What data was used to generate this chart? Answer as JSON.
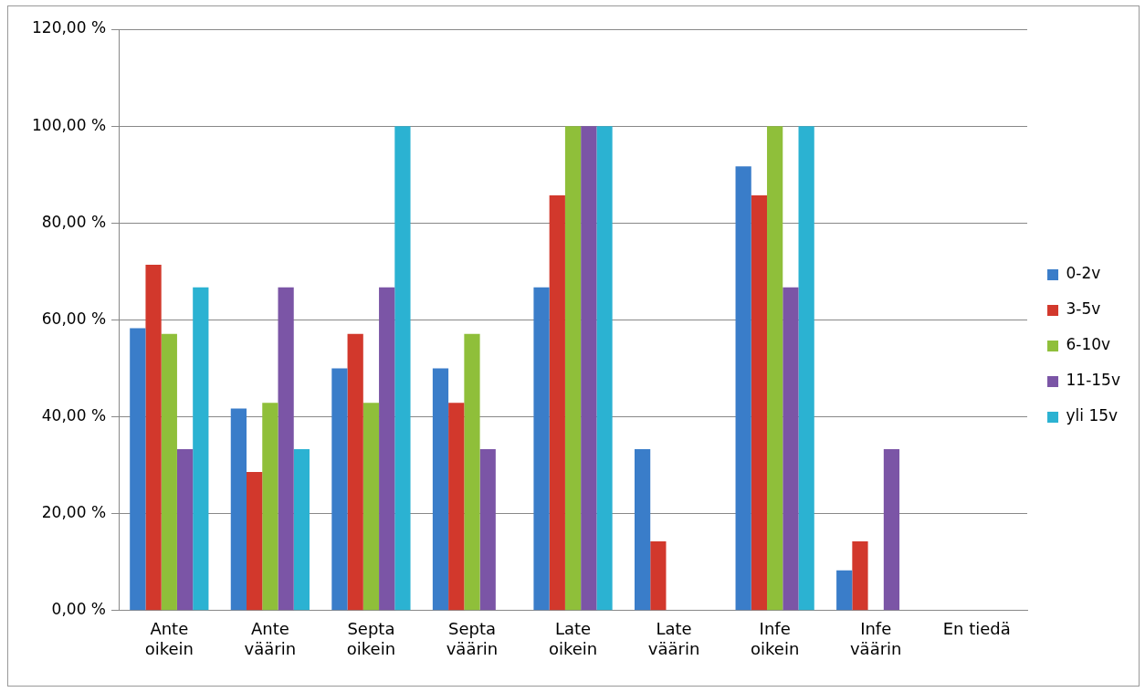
{
  "chart_data": {
    "type": "bar",
    "categories": [
      "Ante\noikein",
      "Ante\nväärin",
      "Septa\noikein",
      "Septa\nväärin",
      "Late\noikein",
      "Late\nväärin",
      "Infe\noikein",
      "Infe\nväärin",
      "En tiedä"
    ],
    "series": [
      {
        "name": "0-2v",
        "color": "#3a7dc9",
        "values": [
          58.3,
          41.7,
          50,
          50,
          66.7,
          33.3,
          91.7,
          8.3,
          0
        ]
      },
      {
        "name": "3-5v",
        "color": "#d2382c",
        "values": [
          71.4,
          28.6,
          57.1,
          42.9,
          85.7,
          14.3,
          85.7,
          14.3,
          0
        ]
      },
      {
        "name": "6-10v",
        "color": "#8fbf3a",
        "values": [
          57.1,
          42.9,
          42.9,
          57.1,
          100,
          0,
          100,
          0,
          0
        ]
      },
      {
        "name": "11-15v",
        "color": "#7b55a6",
        "values": [
          33.3,
          66.7,
          66.7,
          33.3,
          100,
          0,
          66.7,
          33.3,
          0
        ]
      },
      {
        "name": "yli 15v",
        "color": "#2bb2d2",
        "values": [
          66.7,
          33.3,
          100,
          0,
          100,
          0,
          100,
          0,
          0
        ]
      }
    ],
    "ylim": [
      0,
      120
    ],
    "yticks": [
      {
        "value": 0,
        "label": "0,00 %"
      },
      {
        "value": 20,
        "label": "20,00 %"
      },
      {
        "value": 40,
        "label": "40,00 %"
      },
      {
        "value": 60,
        "label": "60,00 %"
      },
      {
        "value": 80,
        "label": "80,00 %"
      },
      {
        "value": 100,
        "label": "100,00 %"
      },
      {
        "value": 120,
        "label": "120,00 %"
      }
    ],
    "grid": "y",
    "legend": "right"
  }
}
